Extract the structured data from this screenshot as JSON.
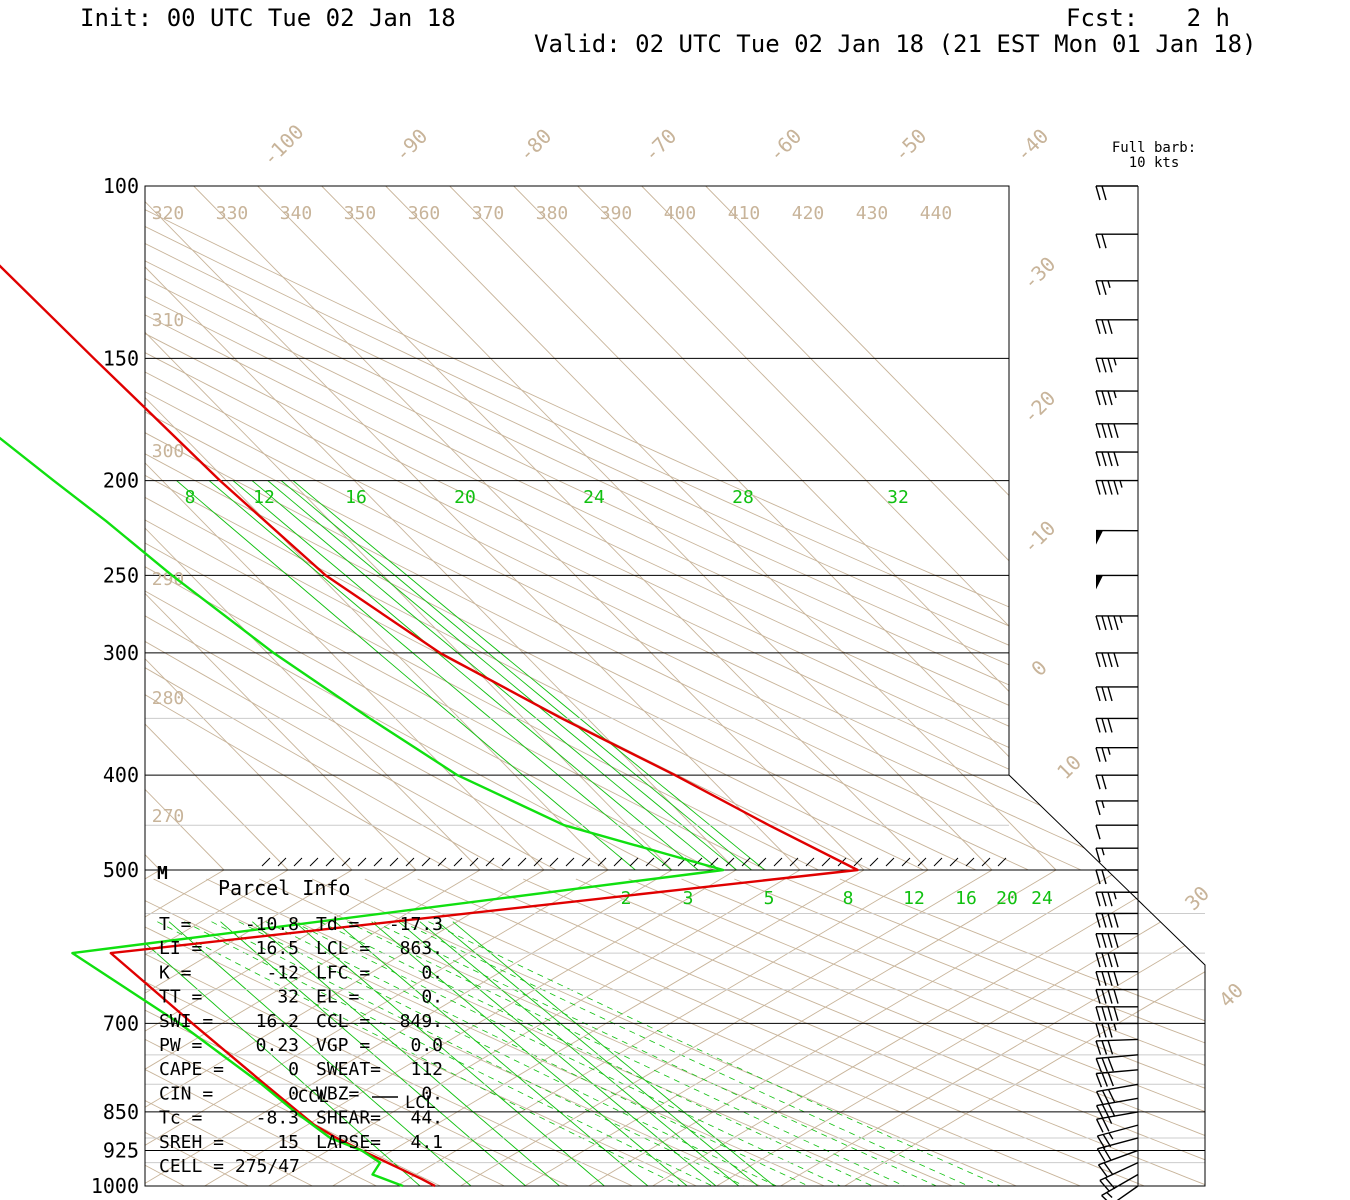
{
  "header": {
    "init": "Init: 00 UTC Tue 02 Jan 18",
    "fcst_label": "Fcst:",
    "fcst_value": "2 h",
    "valid": "Valid: 02 UTC Tue 02 Jan 18 (21 EST Mon 01 Jan 18)"
  },
  "barb_legend": [
    "Full barb:",
    "10 kts"
  ],
  "colors": {
    "temperature": "#e00000",
    "dewpoint": "#10e010",
    "isotherm": "#c8b49a",
    "mixing_ratio": "#10c010",
    "frame": "#000000",
    "text": "#000000"
  },
  "parcel_info": {
    "title": "Parcel Info",
    "rows": [
      {
        "l": "T  =",
        "lv": "-10.8",
        "r": "Td =",
        "rv": "-17.3"
      },
      {
        "l": "LI =",
        "lv": "16.5",
        "r": "LCL =",
        "rv": "863."
      },
      {
        "l": "K  =",
        "lv": "-12",
        "r": "LFC =",
        "rv": "0."
      },
      {
        "l": "TT =",
        "lv": "32",
        "r": "EL  =",
        "rv": "0."
      },
      {
        "l": "SWI =",
        "lv": "16.2",
        "r": "CCL =",
        "rv": "849."
      },
      {
        "l": "PW =",
        "lv": "0.23",
        "r": "VGP =",
        "rv": "0.0"
      },
      {
        "l": "CAPE =",
        "lv": "0",
        "r": "SWEAT=",
        "rv": "112"
      },
      {
        "l": "CIN =",
        "lv": "0",
        "r": "WBZ=",
        "rv": "0."
      },
      {
        "l": "Tc =",
        "lv": "-8.3",
        "r": "SHEAR=",
        "rv": "44."
      },
      {
        "l": "SREH =",
        "lv": "15",
        "r": "LAPSE=",
        "rv": "4.1"
      },
      {
        "l": "CELL = 275/47",
        "lv": "",
        "r": "",
        "rv": ""
      }
    ]
  },
  "markers": {
    "m": "M",
    "ccl": "CCL",
    "lcl": "LCL"
  },
  "chart_data": {
    "type": "skew-t log-p",
    "y_axis": "pressure (hPa), log scale",
    "upper_panel_ylim": [
      100,
      500
    ],
    "lower_panel_ylim": [
      500,
      1000
    ],
    "pressure_ticks": [
      100,
      150,
      200,
      250,
      300,
      400,
      500,
      700,
      850,
      925,
      1000
    ],
    "isotherm_labels_top": [
      "-100",
      "-90",
      "-80",
      "-70",
      "-60",
      "-50",
      "-40"
    ],
    "isotherm_labels_right": [
      "-30",
      "-20",
      "-10",
      "0",
      "10",
      "30",
      "40"
    ],
    "theta_labels_top": [
      "320",
      "330",
      "340",
      "350",
      "360",
      "370",
      "380",
      "390",
      "400",
      "410",
      "420",
      "430",
      "440"
    ],
    "theta_labels_left": [
      "310",
      "300",
      "290",
      "280",
      "270"
    ],
    "mixing_ratio_labels_upper": [
      "8",
      "12",
      "16",
      "20",
      "24",
      "28",
      "32"
    ],
    "mixing_ratio_labels_lower": [
      "2",
      "3",
      "5",
      "8",
      "12",
      "16",
      "20",
      "24"
    ],
    "series": [
      {
        "name": "Temperature",
        "pressure": [
          1000,
          985,
          960,
          925,
          900,
          875,
          850,
          800,
          700,
          600,
          500,
          450,
          400,
          350,
          300,
          250,
          200,
          150,
          100
        ],
        "value": [
          -4,
          -5,
          -7,
          -10,
          -12,
          -13.5,
          -14,
          -15,
          -17,
          -19,
          -21,
          -28,
          -35,
          -44,
          -53,
          -59,
          -61,
          -62,
          -63
        ]
      },
      {
        "name": "Dewpoint",
        "pressure": [
          1000,
          975,
          950,
          925,
          900,
          850,
          800,
          700,
          600,
          500,
          450,
          400,
          350,
          300,
          250,
          220,
          200,
          180,
          150,
          100
        ],
        "value": [
          -9,
          -12,
          -9,
          -10,
          -13,
          -14.5,
          -15.5,
          -19,
          -25,
          -42,
          -60,
          -69,
          -74,
          -79,
          -83,
          -85,
          -87,
          -89,
          -89,
          -90
        ]
      }
    ],
    "wind_barbs": {
      "pressure": [
        1000,
        975,
        950,
        925,
        900,
        875,
        850,
        825,
        800,
        775,
        750,
        725,
        700,
        675,
        650,
        625,
        600,
        575,
        550,
        525,
        500,
        475,
        450,
        425,
        400,
        375,
        350,
        325,
        300,
        275,
        250,
        225,
        200,
        187,
        175,
        162,
        150,
        137,
        125,
        112,
        100
      ],
      "direction_deg": [
        235,
        240,
        245,
        250,
        255,
        255,
        260,
        260,
        260,
        265,
        265,
        268,
        270,
        270,
        270,
        270,
        270,
        270,
        270,
        270,
        270,
        270,
        270,
        270,
        270,
        270,
        270,
        270,
        270,
        270,
        270,
        270,
        270,
        270,
        270,
        270,
        270,
        270,
        270,
        270,
        270
      ],
      "speed_kt": [
        15,
        15,
        20,
        20,
        20,
        25,
        25,
        30,
        30,
        30,
        30,
        30,
        35,
        40,
        40,
        40,
        40,
        40,
        40,
        35,
        20,
        15,
        10,
        15,
        20,
        25,
        30,
        30,
        40,
        45,
        50,
        50,
        45,
        40,
        40,
        35,
        35,
        30,
        25,
        20,
        20
      ]
    }
  }
}
